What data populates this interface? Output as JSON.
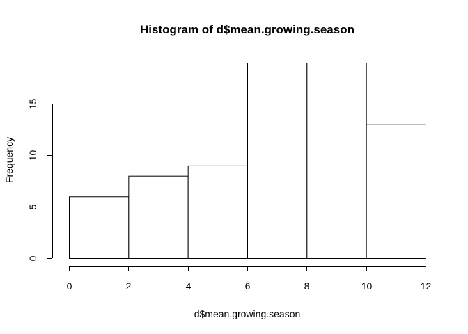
{
  "chart_data": {
    "type": "bar",
    "subtype": "histogram",
    "title": "Histogram of d$mean.growing.season",
    "xlabel": "d$mean.growing.season",
    "ylabel": "Frequency",
    "bins": [
      {
        "start": 0,
        "end": 2,
        "count": 6
      },
      {
        "start": 2,
        "end": 4,
        "count": 8
      },
      {
        "start": 4,
        "end": 6,
        "count": 9
      },
      {
        "start": 6,
        "end": 8,
        "count": 19
      },
      {
        "start": 8,
        "end": 10,
        "count": 19
      },
      {
        "start": 10,
        "end": 12,
        "count": 13
      }
    ],
    "xlim": [
      0,
      12
    ],
    "ylim": [
      0,
      19
    ],
    "xticks": [
      0,
      2,
      4,
      6,
      8,
      10,
      12
    ],
    "yticks": [
      0,
      5,
      10,
      15
    ],
    "grid": false,
    "colors": {
      "bar_fill": "#ffffff",
      "bar_stroke": "#000000",
      "background": "#ffffff"
    }
  }
}
